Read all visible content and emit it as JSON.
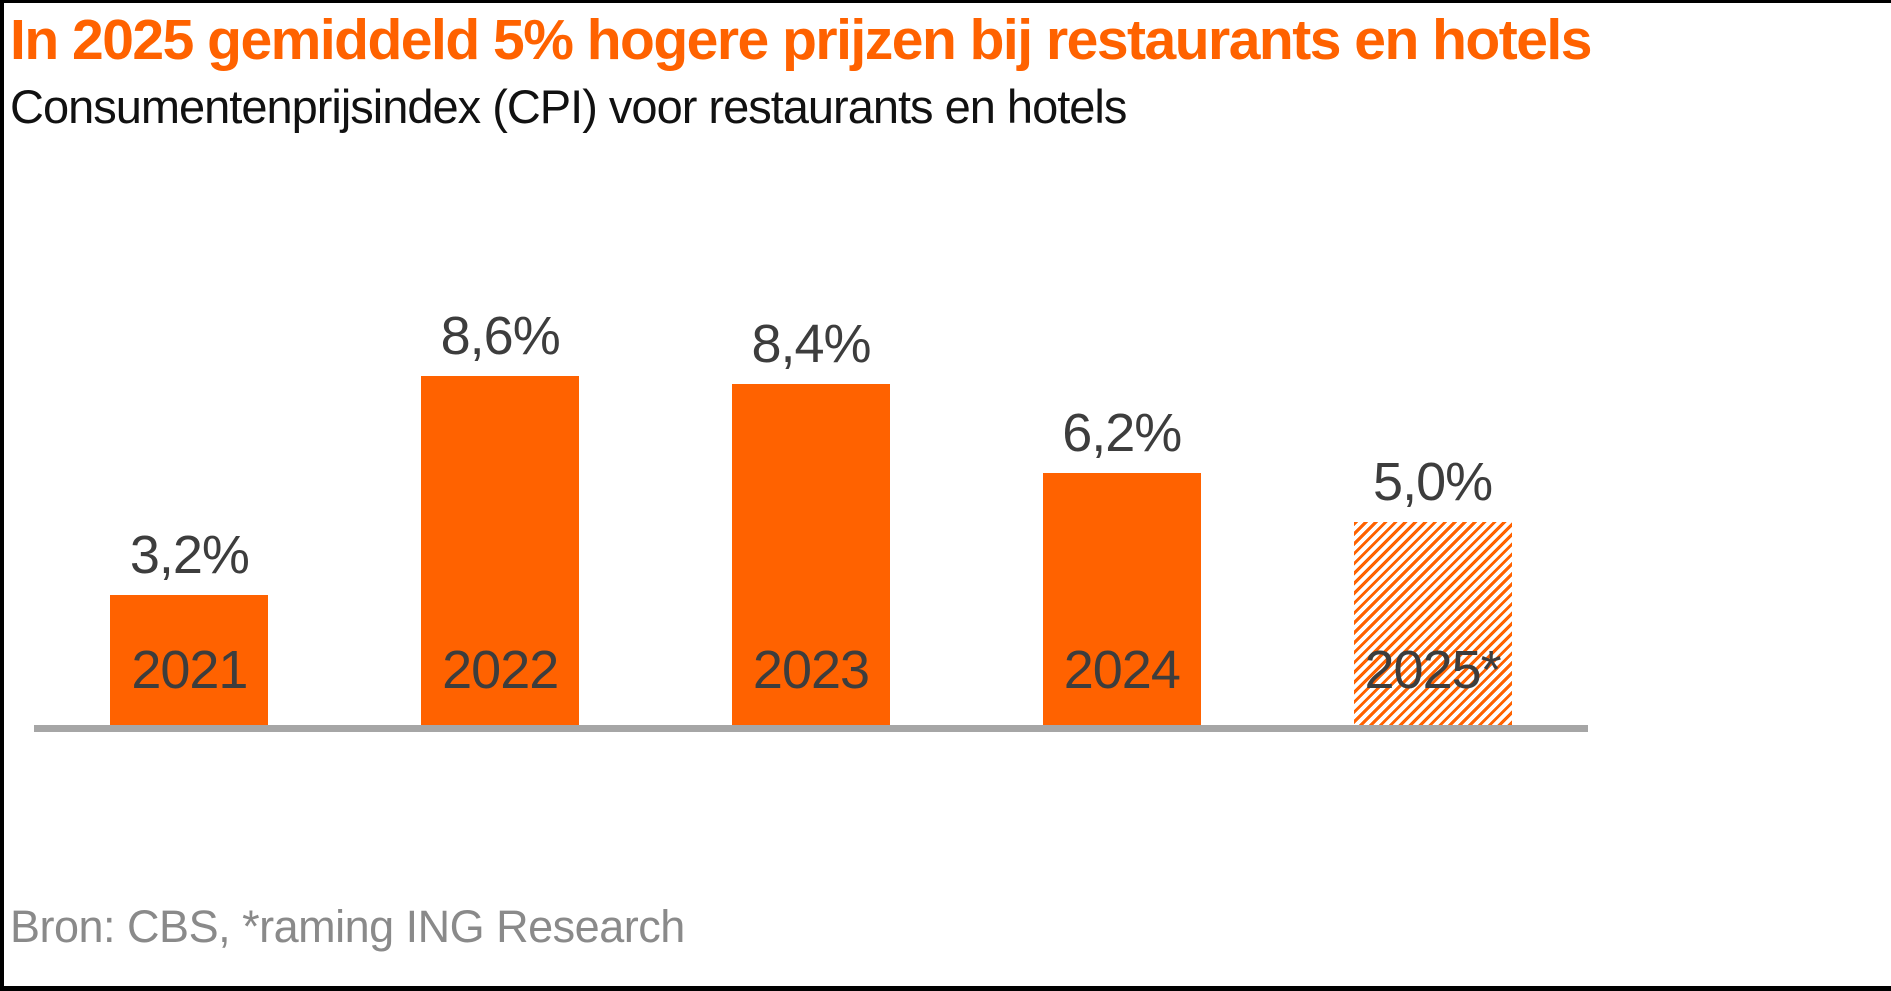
{
  "header": {
    "title": "In 2025 gemiddeld 5% hogere prijzen bij restaurants en hotels",
    "subtitle": "Consumentenprijsindex (CPI) voor restaurants en hotels"
  },
  "footer": {
    "source": "Bron: CBS, *raming ING Research"
  },
  "colors": {
    "bar_orange": "#FF6200",
    "title_orange": "#FF6200",
    "axis_gray": "#A6A6A6",
    "label_dark_gray": "#3d3d3d",
    "source_gray": "#8a8a8a",
    "frame_black": "#000000"
  },
  "chart_data": {
    "type": "bar",
    "title": "In 2025 gemiddeld 5% hogere prijzen bij restaurants en hotels",
    "subtitle": "Consumentenprijsindex (CPI) voor restaurants en hotels",
    "categories": [
      "2021",
      "2022",
      "2023",
      "2024",
      "2025*"
    ],
    "values": [
      3.2,
      8.6,
      8.4,
      6.2,
      5.0
    ],
    "value_labels": [
      "3,2%",
      "8,6%",
      "8,4%",
      "6,2%",
      "5,0%"
    ],
    "bar_styles": [
      "solid",
      "solid",
      "solid",
      "solid",
      "hatched"
    ],
    "unit": "%",
    "ylim": [
      0,
      9.2
    ],
    "grid": false,
    "legend": false,
    "y_axis_visible": false,
    "baseline_axis_visible": true,
    "annotation": "2025 value is hatched: forecast (*raming ING Research)",
    "source": "Bron: CBS, *raming ING Research"
  }
}
